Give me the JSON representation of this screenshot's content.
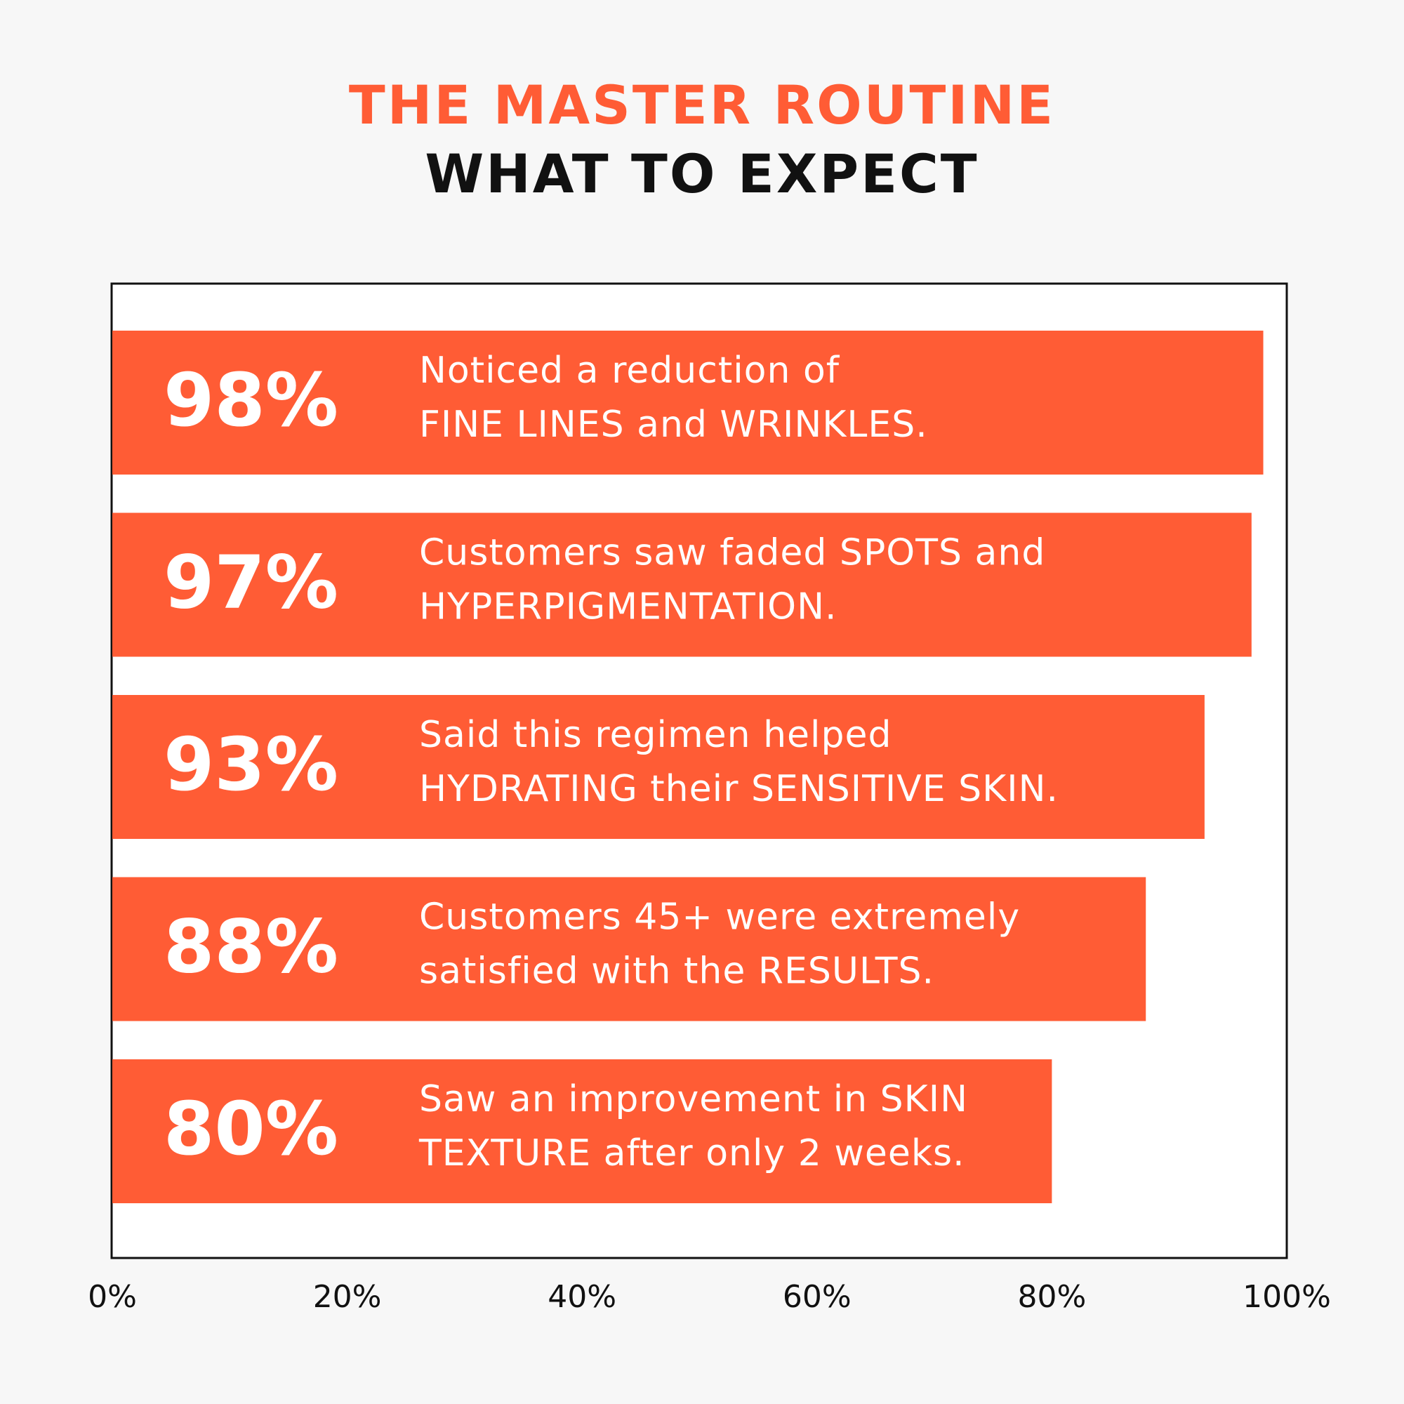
{
  "chart_data": {
    "type": "hbar",
    "title": "THE MASTER ROUTINE",
    "subtitle": "WHAT TO EXPECT",
    "values": [
      98,
      97,
      93,
      88,
      80
    ],
    "value_labels": [
      "98%",
      "97%",
      "93%",
      "88%",
      "80%"
    ],
    "descriptions": [
      [
        "Noticed a reduction of",
        "FINE LINES and WRINKLES."
      ],
      [
        "Customers saw faded SPOTS and",
        "HYPERPIGMENTATION."
      ],
      [
        "Said this regimen helped",
        "HYDRATING their SENSITIVE SKIN."
      ],
      [
        "Customers 45+ were extremely",
        "satisfied with the RESULTS."
      ],
      [
        "Saw an improvement in SKIN",
        "TEXTURE after only 2 weeks."
      ]
    ],
    "color": "#ff5c35",
    "xlim": [
      0,
      100
    ],
    "xticks": [
      {
        "value": 0,
        "label": "0%"
      },
      {
        "value": 20,
        "label": "20%"
      },
      {
        "value": 40,
        "label": "40%"
      },
      {
        "value": 60,
        "label": "60%"
      },
      {
        "value": 80,
        "label": "80%"
      },
      {
        "value": 100,
        "label": "100%"
      }
    ]
  }
}
